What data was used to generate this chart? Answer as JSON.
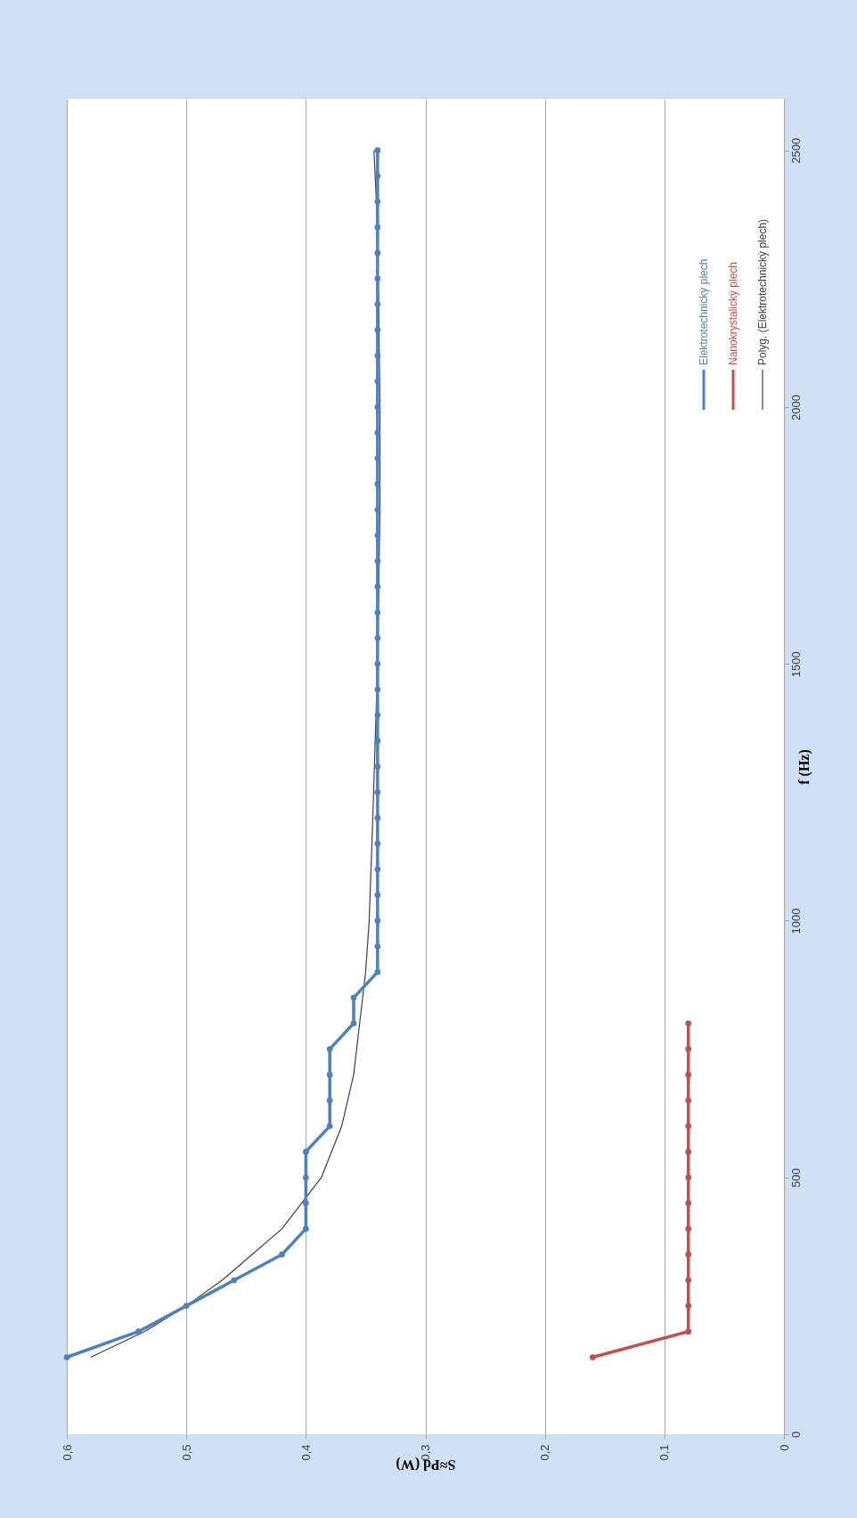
{
  "chart_data": {
    "type": "line",
    "xlabel": "S≈Pd (W)",
    "ylabel": "f (Hz)",
    "xlim": [
      0.6,
      0
    ],
    "xticks": [
      {
        "value": 0.6,
        "label": "0,6"
      },
      {
        "value": 0.5,
        "label": "0,5"
      },
      {
        "value": 0.4,
        "label": "0,4"
      },
      {
        "value": 0.3,
        "label": "0,3"
      },
      {
        "value": 0.2,
        "label": "0,2"
      },
      {
        "value": 0.1,
        "label": "0,1"
      },
      0
    ],
    "ylim": [
      0,
      2600
    ],
    "yticks": [
      0,
      500,
      1000,
      1500,
      2000,
      2500
    ],
    "grid": "x",
    "legend": "top right",
    "marker": "circle",
    "line_style": "solid",
    "series": [
      {
        "name": "Elektrotechnický plech",
        "color": "#4f81bd",
        "values": [
          150,
          200,
          250,
          300,
          350,
          400,
          450,
          500,
          550,
          600,
          650,
          700,
          750,
          800,
          850,
          900,
          950,
          1000,
          1050,
          1100,
          1150,
          1200,
          1250,
          1300,
          1350,
          1400,
          1450,
          1500,
          1550,
          1600,
          1650,
          1700,
          1750,
          1800,
          1850,
          1900,
          1950,
          2000,
          2050,
          2100,
          2150,
          2200,
          2250,
          2300,
          2350,
          2400,
          2450,
          2500
        ],
        "x": [
          0.6,
          0.54,
          0.5,
          0.46,
          0.42,
          0.4,
          0.4,
          0.4,
          0.4,
          0.38,
          0.38,
          0.38,
          0.38,
          0.36,
          0.36,
          0.34,
          0.34,
          0.34,
          0.34,
          0.34,
          0.34,
          0.34,
          0.34,
          0.34,
          0.34,
          0.34,
          0.34,
          0.34,
          0.34,
          0.34,
          0.34,
          0.34,
          0.34,
          0.34,
          0.34,
          0.34,
          0.34,
          0.34,
          0.34,
          0.34,
          0.34,
          0.34,
          0.34,
          0.34,
          0.34,
          0.34,
          0.34,
          0.34
        ]
      },
      {
        "name": "Nanokrystalický plech",
        "color": "#c0504d",
        "values": [
          150,
          200,
          250,
          300,
          350,
          400,
          450,
          500,
          550,
          600,
          650,
          700,
          750,
          800
        ],
        "x": [
          0.16,
          0.08,
          0.08,
          0.08,
          0.08,
          0.08,
          0.08,
          0.08,
          0.08,
          0.08,
          0.08,
          0.08,
          0.08,
          0.08
        ]
      },
      {
        "name": "Polyg. (Elektrotechnický plech)",
        "color": "#404040",
        "type": "line",
        "marker": "none",
        "values": [
          150,
          200,
          250,
          300,
          400,
          500,
          600,
          700,
          800,
          900,
          1000,
          1200,
          1500,
          1800,
          2000,
          2200,
          2400,
          2500
        ],
        "x": [
          0.58,
          0.535,
          0.5,
          0.47,
          0.42,
          0.387,
          0.37,
          0.36,
          0.355,
          0.35,
          0.347,
          0.344,
          0.34,
          0.338,
          0.338,
          0.339,
          0.341,
          0.343
        ]
      }
    ]
  }
}
